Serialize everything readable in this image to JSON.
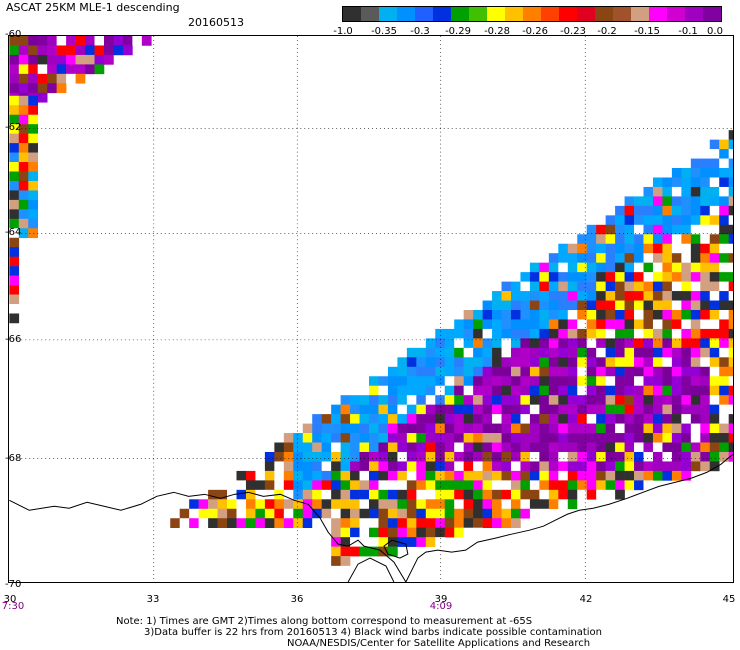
{
  "title": "ASCAT 25KM MLE-1 descending",
  "date": "20160513",
  "colorbar": {
    "labels": [
      "-1.0",
      "-0.35",
      "-0.3",
      "-0.29",
      "-0.28",
      "-0.26",
      "-0.23",
      "-0.2",
      "-0.15",
      "-0.1",
      "0.0"
    ],
    "colors": [
      "#303030",
      "#5a5a5a",
      "#00b0f0",
      "#0090ff",
      "#2060ff",
      "#0030e0",
      "#00a000",
      "#40c000",
      "#ffff00",
      "#ffc000",
      "#ff8000",
      "#ff4000",
      "#ff0000",
      "#e00020",
      "#8b4513",
      "#a0522d",
      "#d2a080",
      "#ff00ff",
      "#d000d0",
      "#a000c0",
      "#8000a0"
    ]
  },
  "axes": {
    "lat_labels": [
      "-60",
      "-62",
      "-64",
      "-66",
      "-68",
      "-70"
    ],
    "lon_labels": [
      "30",
      "33",
      "36",
      "39",
      "42",
      "45"
    ],
    "time_labels": [
      "7:30",
      "4:09"
    ]
  },
  "notes": {
    "line1": "Note: 1) Times are GMT 2)Times along bottom correspond to measurement at -65S",
    "line2": "3)Data buffer is 22 hrs from 20160513 4) Black wind barbs indicate possible contamination",
    "line3": "NOAA/NESDIS/Center for Satellite Applications and Research"
  }
}
